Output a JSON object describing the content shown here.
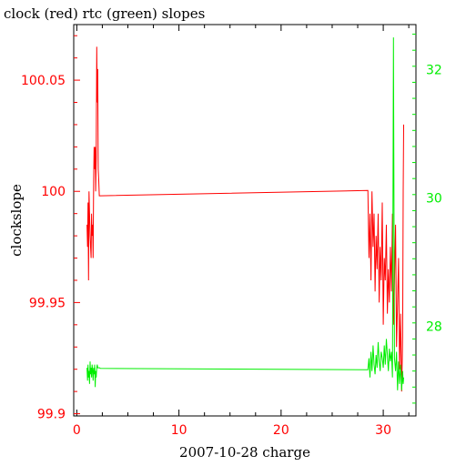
{
  "chart_data": {
    "type": "line",
    "title": "clock (red) rtc (green) slopes",
    "xlabel": "2007-10-28 charge",
    "ylabel": "clockslope",
    "y2label": "",
    "xlim": [
      -0.3,
      33.2
    ],
    "ylim": [
      99.899,
      100.075
    ],
    "y2lim": [
      26.6,
      32.7
    ],
    "x_ticks": [
      0,
      10,
      20,
      30
    ],
    "y_ticks": [
      99.9,
      99.95,
      100,
      100.05
    ],
    "y_tick_labels": [
      "99.9",
      "99.95",
      "100",
      "100.05"
    ],
    "y2_ticks": [
      28,
      30,
      32
    ],
    "y2_tick_labels": [
      "28",
      "30",
      "32"
    ],
    "colors": {
      "clock": "#ff0000",
      "rtc": "#00ee00",
      "axes": "#000000",
      "background": "#ffffff"
    },
    "grid": false,
    "legend": "none",
    "series": [
      {
        "color": "#ff0000",
        "axis": "left",
        "x": [
          1.0,
          1.05,
          1.1,
          1.15,
          1.2,
          1.25,
          1.3,
          1.35,
          1.4,
          1.45,
          1.5,
          1.55,
          1.6,
          1.65,
          1.7,
          1.75,
          1.8,
          1.85,
          1.9,
          1.95,
          2.0,
          2.05,
          2.1,
          2.15,
          2.2,
          2.25,
          2.3,
          28.5,
          28.6,
          28.7,
          28.8,
          28.9,
          29.0,
          29.1,
          29.2,
          29.3,
          29.4,
          29.5,
          29.6,
          29.7,
          29.8,
          29.9,
          30.0,
          30.1,
          30.2,
          30.3,
          30.4,
          30.5,
          30.6,
          30.7,
          30.8,
          30.9,
          31.0,
          31.1,
          31.2,
          31.3,
          31.4,
          31.5,
          31.6,
          31.7,
          31.8,
          31.9,
          31.95,
          32.0
        ],
        "y": [
          99.985,
          99.975,
          99.995,
          99.96,
          100.0,
          99.99,
          99.98,
          99.975,
          99.97,
          99.99,
          99.98,
          99.985,
          99.97,
          100.005,
          100.02,
          100.01,
          100.02,
          100.0,
          100.015,
          100.065,
          100.04,
          100.055,
          100.01,
          100.005,
          99.998,
          99.998,
          99.998,
          100.0004,
          99.97,
          99.99,
          99.96,
          100.0,
          99.975,
          99.99,
          99.955,
          99.98,
          99.965,
          99.99,
          99.95,
          99.975,
          99.96,
          99.995,
          99.94,
          99.97,
          99.96,
          99.985,
          99.945,
          99.965,
          99.95,
          99.975,
          99.955,
          99.99,
          99.94,
          99.96,
          99.985,
          99.93,
          99.95,
          99.97,
          99.92,
          99.945,
          99.91,
          99.935,
          100.0,
          100.03
        ]
      },
      {
        "color": "#00ee00",
        "axis": "right",
        "x": [
          1.0,
          1.05,
          1.1,
          1.15,
          1.2,
          1.25,
          1.3,
          1.35,
          1.4,
          1.45,
          1.5,
          1.55,
          1.6,
          1.65,
          1.7,
          1.75,
          1.8,
          1.85,
          1.9,
          1.95,
          2.0,
          2.05,
          2.1,
          2.15,
          2.2,
          2.25,
          2.3,
          28.5,
          28.6,
          28.7,
          28.8,
          28.9,
          29.0,
          29.1,
          29.2,
          29.3,
          29.4,
          29.5,
          29.6,
          29.7,
          29.8,
          29.9,
          30.0,
          30.1,
          30.2,
          30.3,
          30.4,
          30.5,
          30.6,
          30.7,
          30.8,
          30.9,
          31.0,
          31.1,
          31.2,
          31.3,
          31.4,
          31.5,
          31.6,
          31.7,
          31.8,
          31.9,
          31.95,
          32.0
        ],
        "y": [
          27.35,
          27.15,
          27.4,
          27.2,
          27.3,
          27.1,
          27.45,
          27.25,
          27.35,
          27.2,
          27.4,
          27.3,
          27.15,
          27.35,
          27.25,
          27.4,
          27.05,
          27.3,
          27.2,
          27.35,
          27.4,
          27.35,
          27.35,
          27.35,
          27.35,
          27.35,
          27.34,
          27.32,
          27.5,
          27.2,
          27.6,
          27.3,
          27.7,
          27.4,
          27.25,
          27.55,
          27.35,
          27.75,
          27.45,
          27.3,
          27.6,
          27.5,
          27.35,
          27.7,
          27.4,
          27.8,
          27.55,
          27.3,
          27.65,
          27.45,
          27.6,
          27.2,
          32.5,
          27.5,
          27.3,
          27.6,
          27.0,
          27.45,
          27.1,
          27.4,
          27.0,
          27.3,
          27.1,
          27.2
        ]
      }
    ]
  }
}
